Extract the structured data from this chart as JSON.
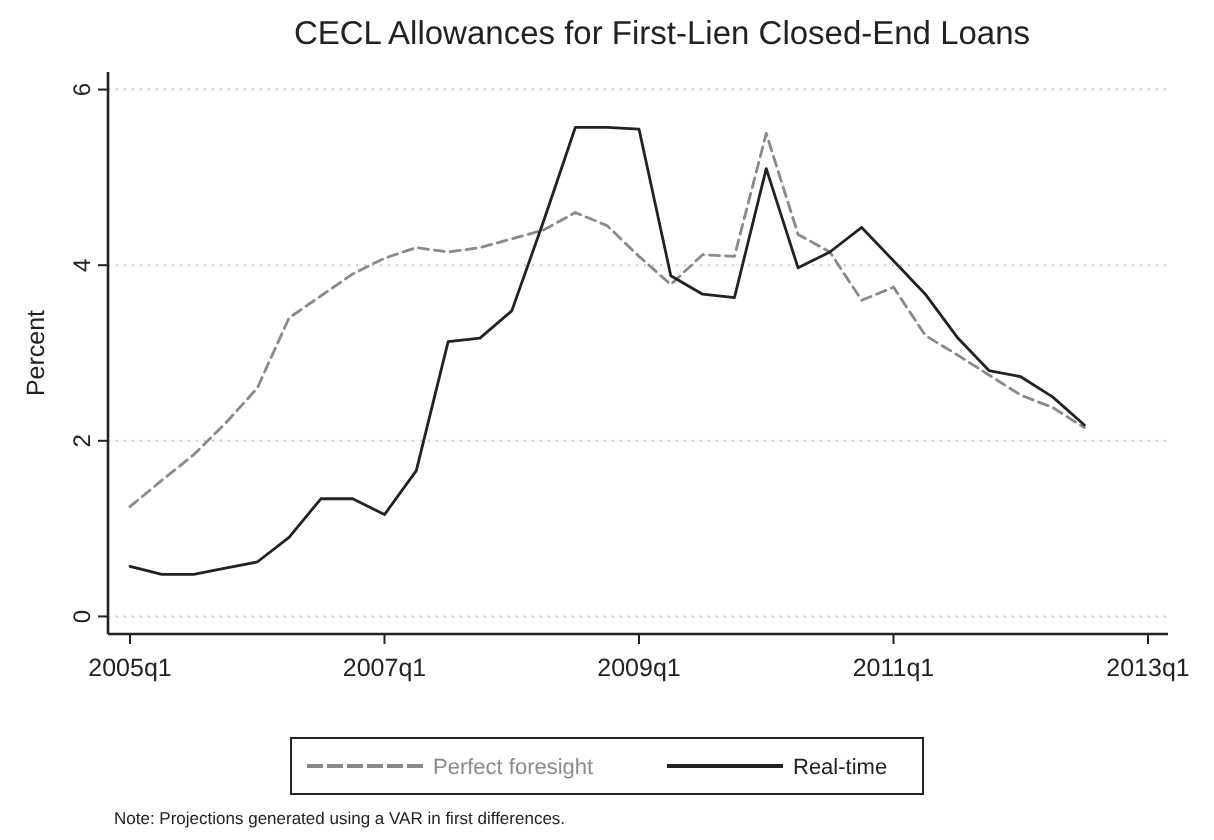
{
  "chart_data": {
    "type": "line",
    "title": "CECL Allowances for First-Lien Closed-End Loans",
    "ylabel": "Percent",
    "categories": [
      "2005q1",
      null,
      null,
      null,
      null,
      null,
      null,
      null,
      "2007q1",
      null,
      null,
      null,
      null,
      null,
      null,
      null,
      "2009q1",
      null,
      null,
      null,
      null,
      null,
      null,
      null,
      "2011q1",
      null,
      null,
      null,
      null,
      null,
      null,
      null,
      "2013q1"
    ],
    "series": [
      {
        "name": "Perfect foresight",
        "color": "#8a8a8a",
        "line_style": "dashed",
        "values": [
          1.25,
          1.55,
          1.84,
          2.2,
          2.6,
          3.4,
          3.65,
          3.9,
          4.08,
          4.2,
          4.15,
          4.2,
          4.3,
          4.4,
          4.6,
          4.45,
          4.1,
          3.78,
          4.12,
          4.1,
          5.5,
          4.35,
          4.15,
          3.6,
          3.75,
          3.2,
          2.98,
          2.75,
          2.52,
          2.38,
          2.15,
          null,
          null
        ]
      },
      {
        "name": "Real-time",
        "color": "#222222",
        "line_style": "solid",
        "values": [
          0.57,
          0.48,
          0.48,
          0.55,
          0.62,
          0.9,
          1.34,
          1.34,
          1.16,
          1.66,
          3.13,
          3.17,
          3.48,
          4.5,
          5.57,
          5.57,
          5.55,
          3.88,
          3.67,
          3.63,
          5.1,
          3.97,
          4.15,
          4.43,
          4.05,
          3.67,
          3.18,
          2.8,
          2.73,
          2.5,
          2.18,
          null,
          null
        ]
      }
    ],
    "ylim": [
      -0.2,
      6.2
    ],
    "yticks": [
      0,
      2,
      4,
      6
    ],
    "grid": "y",
    "legend": "bottom",
    "marker": "none",
    "annotations": [
      "Note: Projections generated using a VAR in first differences."
    ]
  }
}
